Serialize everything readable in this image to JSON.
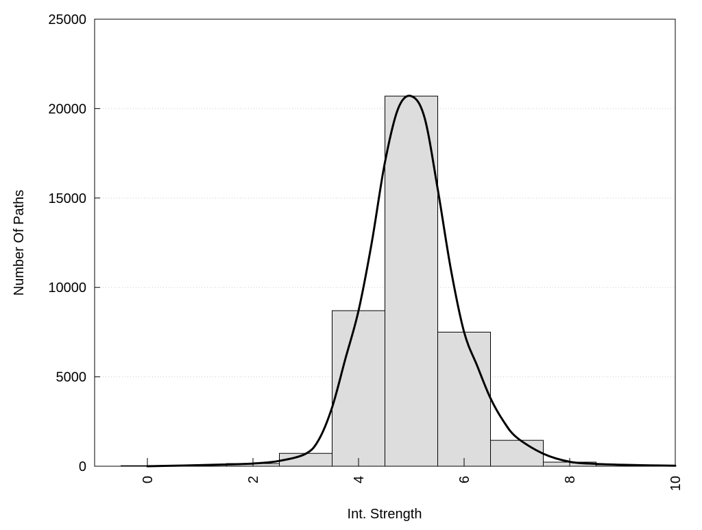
{
  "chart_data": {
    "type": "bar",
    "xlabel": "Int. Strength",
    "ylabel": "Number Of Paths",
    "xlim": [
      -1,
      10
    ],
    "ylim": [
      0,
      25000
    ],
    "x_ticks": [
      0,
      2,
      4,
      6,
      8,
      10
    ],
    "y_ticks": [
      0,
      5000,
      10000,
      15000,
      20000,
      25000
    ],
    "grid": "horizontal-dotted",
    "bin_width": 1,
    "bins": [
      {
        "center": 0,
        "value": 30
      },
      {
        "center": 1,
        "value": 60
      },
      {
        "center": 2,
        "value": 150
      },
      {
        "center": 3,
        "value": 720
      },
      {
        "center": 4,
        "value": 8700
      },
      {
        "center": 5,
        "value": 20700
      },
      {
        "center": 6,
        "value": 7500
      },
      {
        "center": 7,
        "value": 1450
      },
      {
        "center": 8,
        "value": 230
      },
      {
        "center": 9,
        "value": 80
      },
      {
        "center": 10,
        "value": 30
      }
    ],
    "curve": {
      "x": [
        0,
        0.5,
        1,
        1.5,
        2,
        2.5,
        3,
        3.25,
        3.5,
        3.75,
        4,
        4.25,
        4.5,
        4.75,
        5,
        5.25,
        5.5,
        5.75,
        6,
        6.25,
        6.5,
        6.75,
        7,
        7.5,
        8,
        8.5,
        9,
        9.5,
        10
      ],
      "y": [
        0,
        30,
        60,
        100,
        150,
        300,
        700,
        1500,
        3300,
        6000,
        8700,
        12500,
        17000,
        20000,
        20700,
        19500,
        15500,
        11000,
        7500,
        5600,
        3800,
        2500,
        1600,
        700,
        250,
        130,
        80,
        50,
        30
      ]
    },
    "colors": {
      "bar_fill": "#dddddd",
      "bar_stroke": "#000000",
      "curve": "#000000",
      "grid": "#cccccc"
    }
  }
}
